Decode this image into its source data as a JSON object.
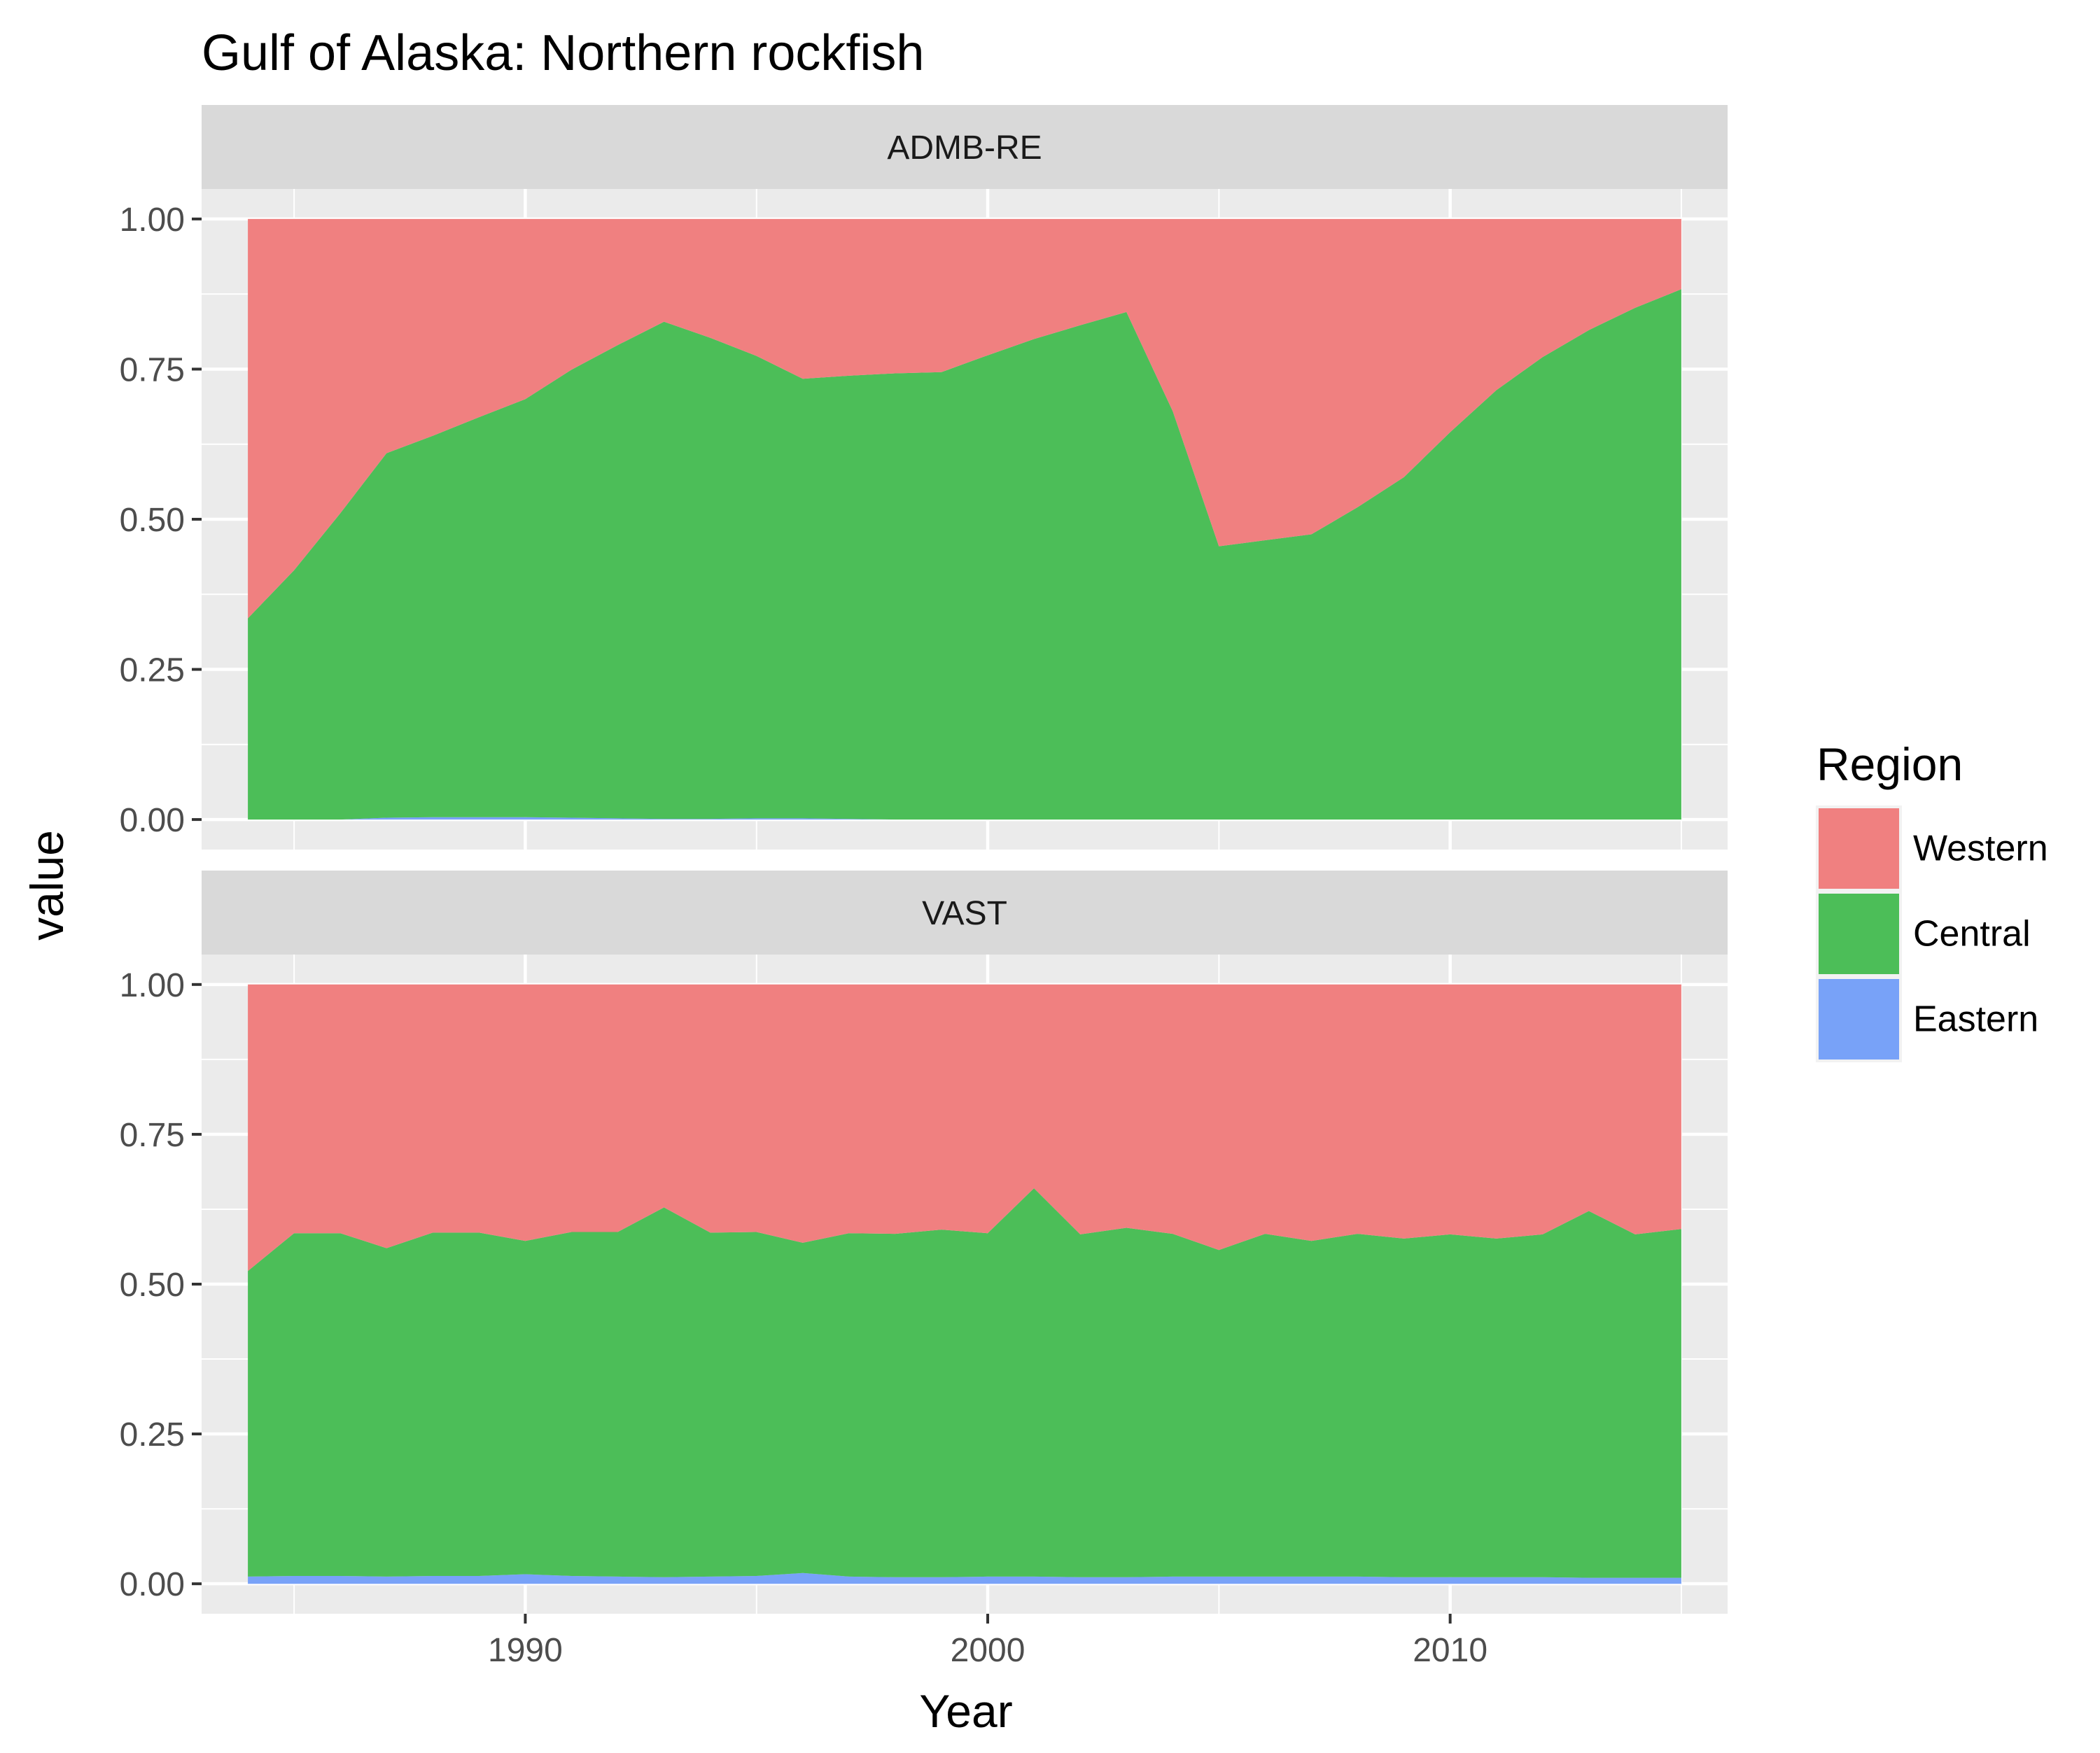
{
  "chart_data": {
    "type": "area",
    "stacked": true,
    "normalized": true,
    "title": "Gulf of Alaska: Northern rockfish",
    "xlabel": "Year",
    "ylabel": "value",
    "xlim": [
      1983,
      2016
    ],
    "ylim": [
      -0.05,
      1.05
    ],
    "x_ticks": [
      1990,
      2000,
      2010
    ],
    "y_ticks": [
      0,
      0.25,
      0.5,
      0.75,
      1.0
    ],
    "y_tick_labels": [
      "0.00",
      "0.25",
      "0.50",
      "0.75",
      "1.00"
    ],
    "grid": true,
    "legend": {
      "title": "Region",
      "position": "right",
      "entries": [
        "Western",
        "Central",
        "Eastern"
      ]
    },
    "colors": {
      "Western": "#f08080",
      "Central": "#4cbe58",
      "Eastern": "#78a2f8"
    },
    "x": [
      1984,
      1985,
      1986,
      1987,
      1988,
      1989,
      1990,
      1991,
      1992,
      1993,
      1994,
      1995,
      1996,
      1997,
      1998,
      1999,
      2000,
      2001,
      2002,
      2003,
      2004,
      2005,
      2006,
      2007,
      2008,
      2009,
      2010,
      2011,
      2012,
      2013,
      2014,
      2015
    ],
    "panels": [
      {
        "name": "ADMB-RE",
        "series": [
          {
            "name": "Eastern",
            "values": [
              0.0,
              0.0,
              0.0,
              0.003,
              0.004,
              0.004,
              0.004,
              0.003,
              0.002,
              0.001,
              0.001,
              0.002,
              0.002,
              0.001,
              0.0,
              0.0,
              0.0,
              0.0,
              0.0,
              0.0,
              0.0,
              0.0,
              0.0,
              0.0,
              0.0,
              0.0,
              0.0,
              0.0,
              0.0,
              0.0,
              0.0,
              0.0
            ]
          },
          {
            "name": "Central",
            "values": [
              0.335,
              0.415,
              0.51,
              0.607,
              0.635,
              0.666,
              0.696,
              0.746,
              0.788,
              0.828,
              0.801,
              0.77,
              0.732,
              0.738,
              0.743,
              0.745,
              0.773,
              0.8,
              0.823,
              0.845,
              0.68,
              0.455,
              0.465,
              0.475,
              0.52,
              0.57,
              0.645,
              0.715,
              0.77,
              0.815,
              0.852,
              0.883
            ]
          },
          {
            "name": "Western",
            "values": [
              0.665,
              0.585,
              0.49,
              0.39,
              0.361,
              0.33,
              0.3,
              0.251,
              0.21,
              0.171,
              0.198,
              0.228,
              0.266,
              0.261,
              0.257,
              0.255,
              0.227,
              0.2,
              0.177,
              0.155,
              0.32,
              0.545,
              0.535,
              0.525,
              0.48,
              0.43,
              0.355,
              0.285,
              0.23,
              0.185,
              0.148,
              0.117
            ]
          }
        ]
      },
      {
        "name": "VAST",
        "series": [
          {
            "name": "Eastern",
            "values": [
              0.012,
              0.013,
              0.013,
              0.012,
              0.013,
              0.013,
              0.016,
              0.013,
              0.012,
              0.011,
              0.012,
              0.013,
              0.018,
              0.012,
              0.011,
              0.011,
              0.012,
              0.012,
              0.011,
              0.011,
              0.012,
              0.012,
              0.012,
              0.012,
              0.012,
              0.011,
              0.011,
              0.011,
              0.011,
              0.01,
              0.01,
              0.01
            ]
          },
          {
            "name": "Central",
            "values": [
              0.51,
              0.572,
              0.572,
              0.548,
              0.573,
              0.573,
              0.556,
              0.574,
              0.575,
              0.617,
              0.574,
              0.574,
              0.551,
              0.573,
              0.573,
              0.58,
              0.573,
              0.648,
              0.572,
              0.583,
              0.572,
              0.545,
              0.572,
              0.56,
              0.572,
              0.565,
              0.572,
              0.565,
              0.572,
              0.612,
              0.573,
              0.582
            ]
          },
          {
            "name": "Western",
            "values": [
              0.478,
              0.415,
              0.415,
              0.44,
              0.414,
              0.414,
              0.428,
              0.413,
              0.413,
              0.372,
              0.414,
              0.413,
              0.431,
              0.415,
              0.416,
              0.409,
              0.415,
              0.34,
              0.417,
              0.406,
              0.416,
              0.443,
              0.416,
              0.428,
              0.416,
              0.424,
              0.417,
              0.424,
              0.417,
              0.378,
              0.417,
              0.408
            ]
          }
        ]
      }
    ]
  }
}
